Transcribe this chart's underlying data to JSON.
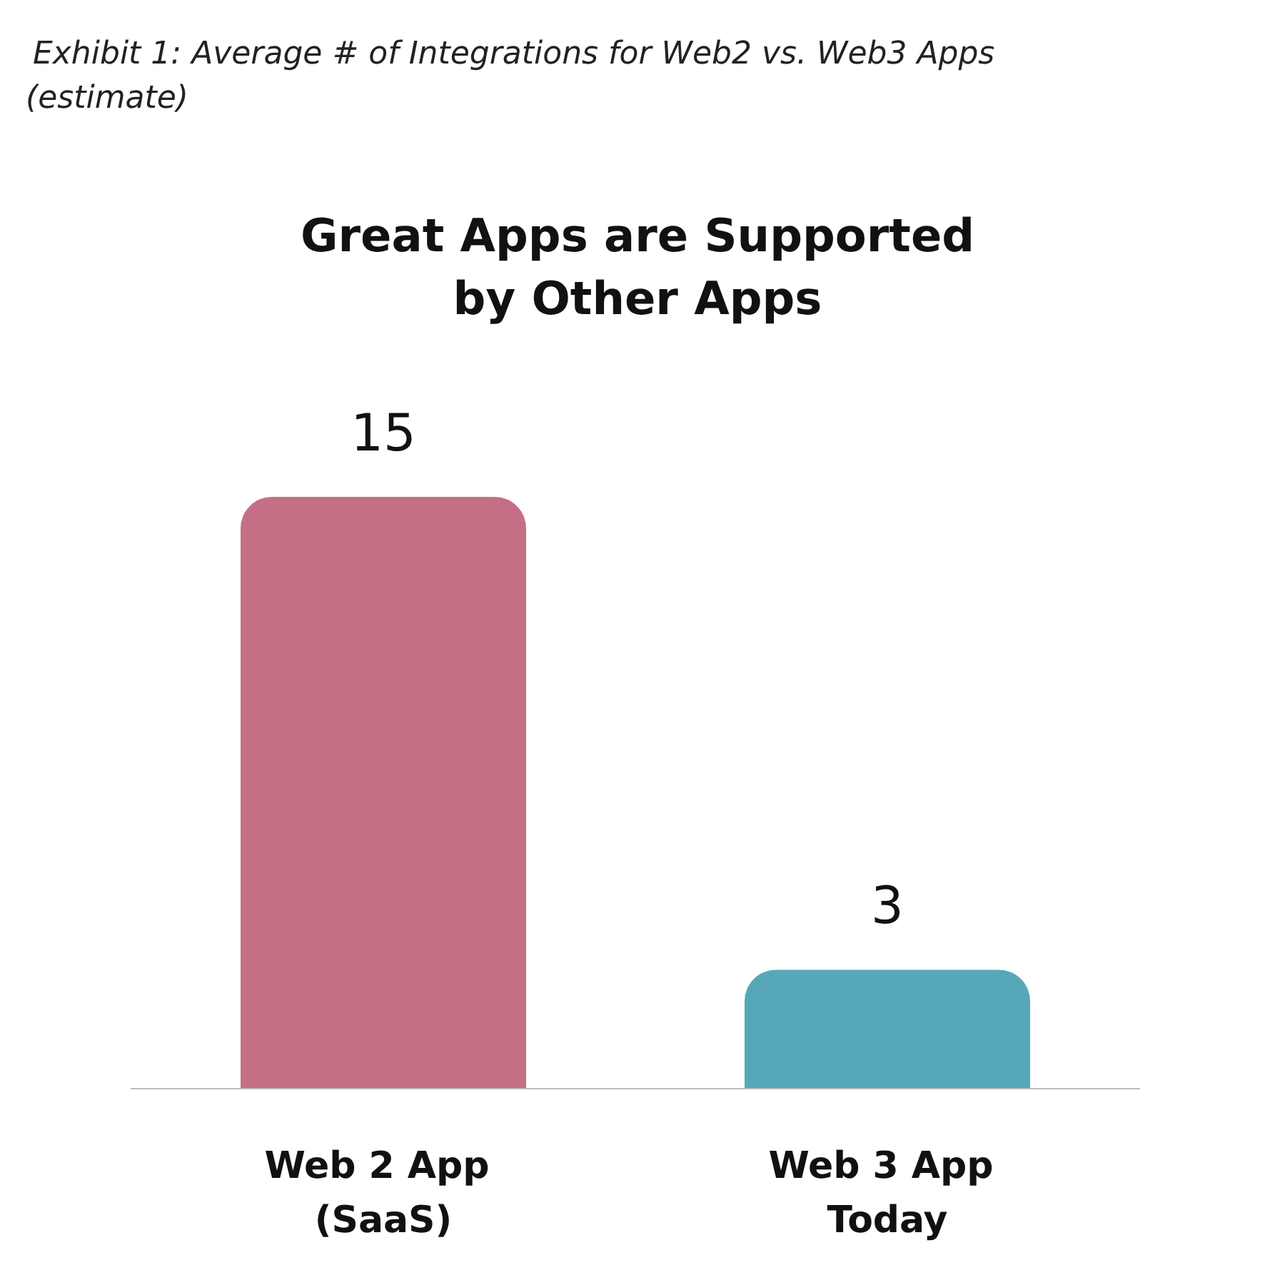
{
  "chart_data": {
    "type": "bar",
    "title": "Exhibit 1: Average # of Integrations for Web2 vs. Web3 Apps",
    "annotations": [
      "(estimate)"
    ],
    "subtitle": "Great Apps are Supported\nby Other Apps",
    "categories": [
      "Web 2 App (SaaS)",
      "Web 3 App Today"
    ],
    "values": [
      15,
      3
    ],
    "colors": [
      "#c46f84",
      "#56a8b8"
    ],
    "data_labels": true
  }
}
